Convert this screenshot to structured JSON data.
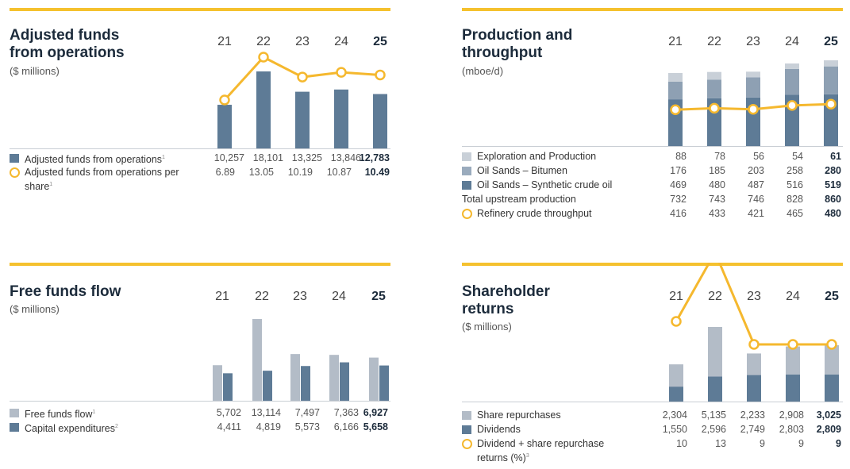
{
  "colors": {
    "accent": "#f5c12e",
    "dark": "#5e7b96",
    "light": "#b3bcc7",
    "mid": "#8ea0b3",
    "line": "#f5b82e"
  },
  "years": [
    "21",
    "22",
    "23",
    "24",
    "25"
  ],
  "chart_data": [
    {
      "type": "bar",
      "title": "Adjusted funds\nfrom operations",
      "subtitle": "($ millions)",
      "categories": [
        "21",
        "22",
        "23",
        "24",
        "25"
      ],
      "series": [
        {
          "name": "Adjusted funds from operations",
          "values": [
            10257,
            18101,
            13325,
            13846,
            12783
          ],
          "display": [
            "10,257",
            "18,101",
            "13,325",
            "13,846",
            "12,783"
          ],
          "footnote": "1"
        },
        {
          "name": "Adjusted funds from operations per share",
          "values": [
            6.89,
            13.05,
            10.19,
            10.87,
            10.49
          ],
          "display": [
            "6.89",
            "13.05",
            "10.19",
            "10.87",
            "10.49"
          ],
          "footnote": "1",
          "type": "line"
        }
      ]
    },
    {
      "type": "bar",
      "title": "Production and\nthroughput",
      "subtitle": "(mboe/d)",
      "categories": [
        "21",
        "22",
        "23",
        "24",
        "25"
      ],
      "series": [
        {
          "name": "Exploration and Production",
          "values": [
            88,
            78,
            56,
            54,
            61
          ],
          "display": [
            "88",
            "78",
            "56",
            "54",
            "61"
          ]
        },
        {
          "name": "Oil Sands – Bitumen",
          "values": [
            176,
            185,
            203,
            258,
            280
          ],
          "display": [
            "176",
            "185",
            "203",
            "258",
            "280"
          ]
        },
        {
          "name": "Oil Sands – Synthetic crude oil",
          "values": [
            469,
            480,
            487,
            516,
            519
          ],
          "display": [
            "469",
            "480",
            "487",
            "516",
            "519"
          ]
        },
        {
          "name": "Total upstream production",
          "values": [
            732,
            743,
            746,
            828,
            860
          ],
          "display": [
            "732",
            "743",
            "746",
            "828",
            "860"
          ]
        },
        {
          "name": "Refinery crude throughput",
          "values": [
            416,
            433,
            421,
            465,
            480
          ],
          "display": [
            "416",
            "433",
            "421",
            "465",
            "480"
          ],
          "type": "line"
        }
      ]
    },
    {
      "type": "bar",
      "title": "Free funds flow",
      "subtitle": "($ millions)",
      "categories": [
        "21",
        "22",
        "23",
        "24",
        "25"
      ],
      "series": [
        {
          "name": "Free funds flow",
          "values": [
            5702,
            13114,
            7497,
            7363,
            6927
          ],
          "display": [
            "5,702",
            "13,114",
            "7,497",
            "7,363",
            "6,927"
          ],
          "footnote": "1"
        },
        {
          "name": "Capital expenditures",
          "values": [
            4411,
            4819,
            5573,
            6166,
            5658
          ],
          "display": [
            "4,411",
            "4,819",
            "5,573",
            "6,166",
            "5,658"
          ],
          "footnote": "2"
        }
      ]
    },
    {
      "type": "bar",
      "title": "Shareholder\nreturns",
      "subtitle": "($ millions)",
      "categories": [
        "21",
        "22",
        "23",
        "24",
        "25"
      ],
      "series": [
        {
          "name": "Share repurchases",
          "values": [
            2304,
            5135,
            2233,
            2908,
            3025
          ],
          "display": [
            "2,304",
            "5,135",
            "2,233",
            "2,908",
            "3,025"
          ]
        },
        {
          "name": "Dividends",
          "values": [
            1550,
            2596,
            2749,
            2803,
            2809
          ],
          "display": [
            "1,550",
            "2,596",
            "2,749",
            "2,803",
            "2,809"
          ]
        },
        {
          "name": "Dividend + share repurchase\nreturns (%)",
          "values": [
            10,
            13,
            9,
            9,
            9
          ],
          "display": [
            "10",
            "13",
            "9",
            "9",
            "9"
          ],
          "footnote": "3",
          "type": "line"
        }
      ]
    }
  ]
}
